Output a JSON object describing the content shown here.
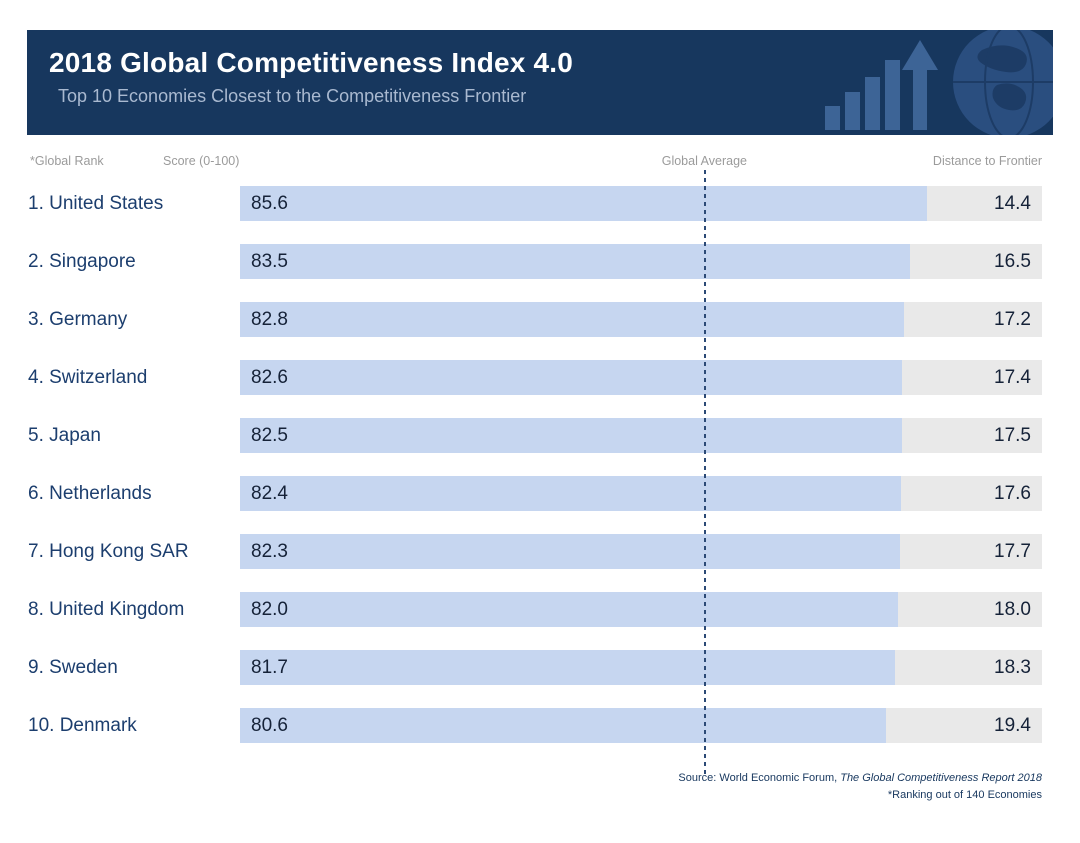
{
  "header": {
    "title": "2018 Global Competitiveness Index 4.0",
    "subtitle": "Top 10 Economies Closest to the Competitiveness Frontier"
  },
  "columns": {
    "rank": "*Global Rank",
    "score": "Score (0-100)",
    "average": "Global Average",
    "distance": "Distance to Frontier"
  },
  "rows": [
    {
      "rank_label": "1. United States",
      "score": "85.6",
      "distance": "14.4",
      "score_value": 85.6
    },
    {
      "rank_label": "2. Singapore",
      "score": "83.5",
      "distance": "16.5",
      "score_value": 83.5
    },
    {
      "rank_label": "3. Germany",
      "score": "82.8",
      "distance": "17.2",
      "score_value": 82.8
    },
    {
      "rank_label": "4. Switzerland",
      "score": "82.6",
      "distance": "17.4",
      "score_value": 82.6
    },
    {
      "rank_label": "5. Japan",
      "score": "82.5",
      "distance": "17.5",
      "score_value": 82.5
    },
    {
      "rank_label": "6. Netherlands",
      "score": "82.4",
      "distance": "17.6",
      "score_value": 82.4
    },
    {
      "rank_label": "7. Hong Kong SAR",
      "score": "82.3",
      "distance": "17.7",
      "score_value": 82.3
    },
    {
      "rank_label": "8. United Kingdom",
      "score": "82.0",
      "distance": "18.0",
      "score_value": 82.0
    },
    {
      "rank_label": "9. Sweden",
      "score": "81.7",
      "distance": "18.3",
      "score_value": 81.7
    },
    {
      "rank_label": "10. Denmark",
      "score": "80.6",
      "distance": "19.4",
      "score_value": 80.6
    }
  ],
  "chart_data": {
    "type": "bar",
    "orientation": "horizontal",
    "stacked": true,
    "title": "2018 Global Competitiveness Index 4.0",
    "subtitle": "Top 10 Economies Closest to the Competitiveness Frontier",
    "categories": [
      "1. United States",
      "2. Singapore",
      "3. Germany",
      "4. Switzerland",
      "5. Japan",
      "6. Netherlands",
      "7. Hong Kong SAR",
      "8. United Kingdom",
      "9. Sweden",
      "10. Denmark"
    ],
    "series": [
      {
        "name": "Score (0-100)",
        "values": [
          85.6,
          83.5,
          82.8,
          82.6,
          82.5,
          82.4,
          82.3,
          82.0,
          81.7,
          80.6
        ]
      },
      {
        "name": "Distance to Frontier",
        "values": [
          14.4,
          16.5,
          17.2,
          17.4,
          17.5,
          17.6,
          17.7,
          18.0,
          18.3,
          19.4
        ]
      }
    ],
    "xlim": [
      0,
      100
    ],
    "grid": false,
    "legend": "none",
    "reference_line": {
      "label": "Global Average",
      "style": "dashed-vertical",
      "position_pct": 57.9
    },
    "colors": {
      "banner_background": "#17375e",
      "score_bar": "#c6d6f0",
      "distance_bar": "#e9e9e9",
      "label_text": "#1c3e6e",
      "value_text": "#152238",
      "column_header_text": "#9b9b9b",
      "reference_line": "#2c4a76"
    }
  },
  "footer": {
    "source_prefix": "Source: World Economic Forum, ",
    "source_title": "The Global Competitiveness Report 2018",
    "ranking_note": "*Ranking out of 140 Economies"
  }
}
